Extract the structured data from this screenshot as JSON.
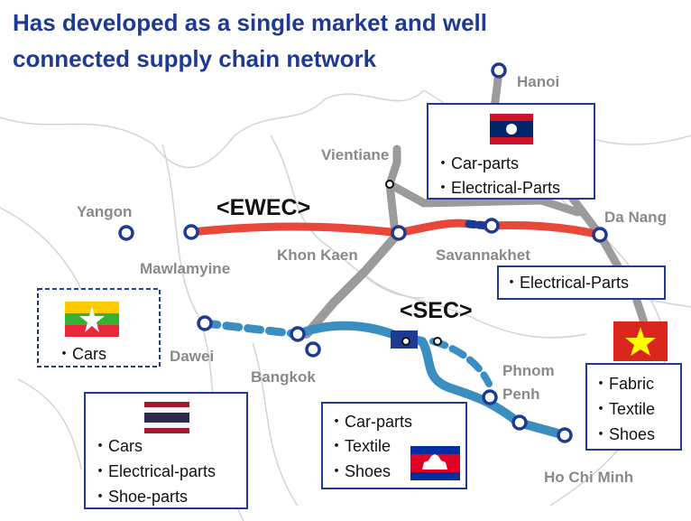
{
  "title": [
    "Has developed as a single market and well",
    "connected supply chain network"
  ],
  "corridors": [
    "<EWEC>",
    "<SEC>"
  ],
  "place_labels": [
    "Hanoi",
    "Vientiane",
    "Yangon",
    "Mawlamyine",
    "Khon Kaen",
    "Savannakhet",
    "Da Nang",
    "Dawei",
    "Bangkok",
    "Phnom",
    "Penh",
    "Ho Chi Minh"
  ],
  "boxes": {
    "laos": [
      "・Car-parts",
      "・Electrical-Parts"
    ],
    "da_nang": [
      "・Electrical-Parts"
    ],
    "myanmar": [
      "・Cars"
    ],
    "thailand": [
      "・Cars",
      "・Electrical-parts",
      "・Shoe-parts"
    ],
    "cambodia": [
      "・Car-parts",
      "・Textile",
      "・Shoes"
    ],
    "vietnam": [
      "・Fabric",
      "・Textile",
      "・Shoes"
    ]
  }
}
